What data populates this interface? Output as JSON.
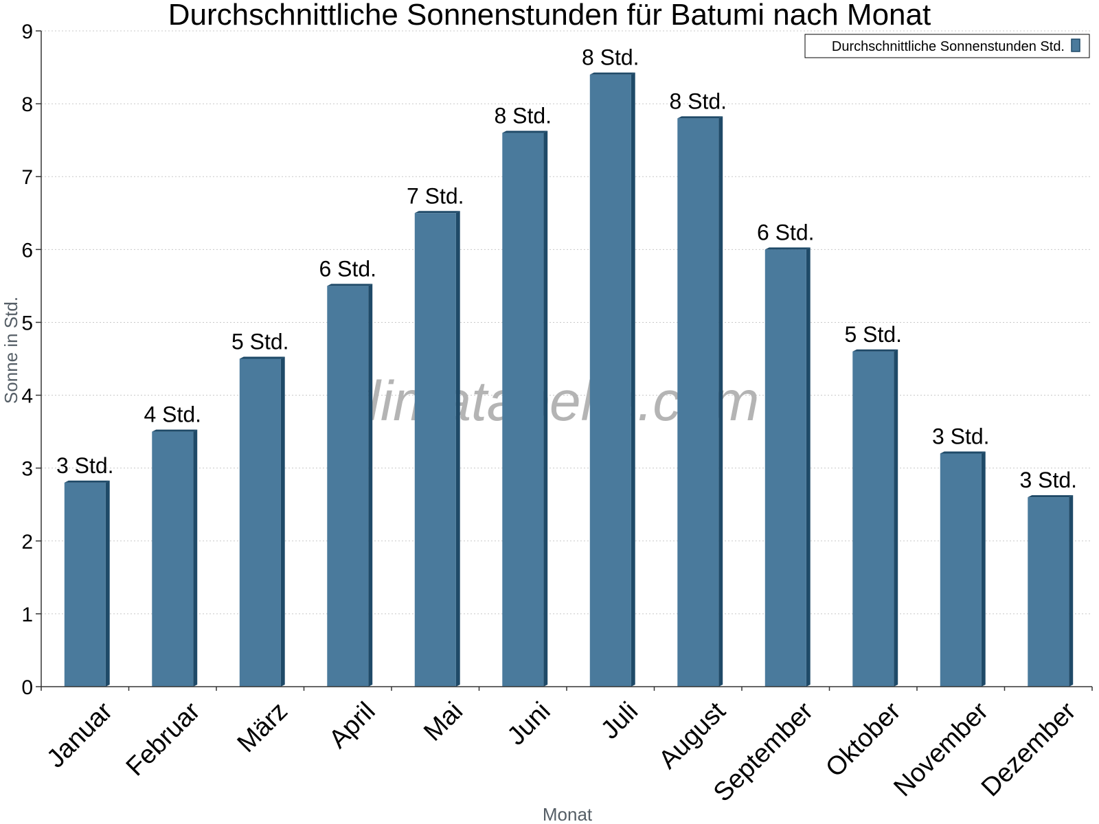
{
  "chart_data": {
    "type": "bar",
    "title": "Durchschnittliche Sonnenstunden für Batumi nach Monat",
    "xlabel": "Monat",
    "ylabel": "Sonne in Std.",
    "ylim": [
      0,
      9
    ],
    "yticks": [
      0,
      1,
      2,
      3,
      4,
      5,
      6,
      7,
      8,
      9
    ],
    "grid": true,
    "legend_position": "top-right",
    "categories": [
      "Januar",
      "Februar",
      "März",
      "April",
      "Mai",
      "Juni",
      "Juli",
      "August",
      "September",
      "Oktober",
      "November",
      "Dezember"
    ],
    "series": [
      {
        "name": "Durchschnittliche Sonnenstunden Std.",
        "color": "#4a7a9c",
        "values": [
          2.8,
          3.5,
          4.5,
          5.5,
          6.5,
          7.6,
          8.4,
          7.8,
          6.0,
          4.6,
          3.2,
          2.6
        ],
        "labels": [
          "3 Std.",
          "4 Std.",
          "5 Std.",
          "6 Std.",
          "7 Std.",
          "8 Std.",
          "8 Std.",
          "8 Std.",
          "6 Std.",
          "5 Std.",
          "3 Std.",
          "3 Std."
        ]
      }
    ],
    "watermark": "klimatabelle.com"
  }
}
